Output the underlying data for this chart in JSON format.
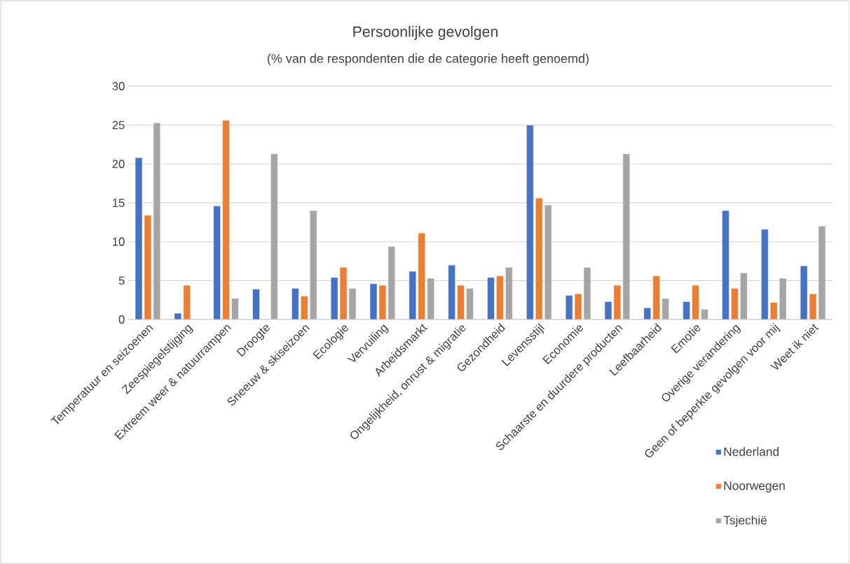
{
  "chart_data": {
    "type": "bar",
    "title": "Persoonlijke gevolgen",
    "subtitle": "(% van de respondenten die de categorie heeft genoemd)",
    "categories": [
      "Temperatuur en seizoenen",
      "Zeespiegelstijging",
      "Extreem weer & natuurrampen",
      "Droogte",
      "Sneeuw & skiseizoen",
      "Ecologie",
      "Vervuiling",
      "Arbeidsmarkt",
      "Ongelijkheid, onrust & migratie",
      "Gezondheid",
      "Levensstijl",
      "Economie",
      "Schaarste en duurdere producten",
      "Leefbaarheid",
      "Emotie",
      "Overige verandering",
      "Geen of beperkte gevolgen voor mij",
      "Weet ik niet"
    ],
    "series": [
      {
        "name": "Nederland",
        "color": "#4472c4",
        "values": [
          20.8,
          0.8,
          14.6,
          3.9,
          4.0,
          5.4,
          4.6,
          6.2,
          7.0,
          5.4,
          25.0,
          3.1,
          2.3,
          1.5,
          2.3,
          14.0,
          11.6,
          6.9
        ]
      },
      {
        "name": "Noorwegen",
        "color": "#ed7d31",
        "values": [
          13.4,
          4.4,
          25.6,
          null,
          3.0,
          6.7,
          4.4,
          11.1,
          4.4,
          5.6,
          15.6,
          3.3,
          4.4,
          5.6,
          4.4,
          4.0,
          2.2,
          3.3
        ]
      },
      {
        "name": "Tsjechië",
        "color": "#a5a5a5",
        "values": [
          25.3,
          null,
          2.7,
          21.3,
          14.0,
          4.0,
          9.4,
          5.3,
          4.0,
          6.7,
          14.7,
          6.7,
          21.3,
          2.7,
          1.3,
          6.0,
          5.3,
          12.0
        ]
      }
    ],
    "ylim": [
      0,
      30
    ],
    "yticks": [
      0,
      5,
      10,
      15,
      20,
      25,
      30
    ],
    "grid": "y",
    "legend": "bottom right"
  }
}
